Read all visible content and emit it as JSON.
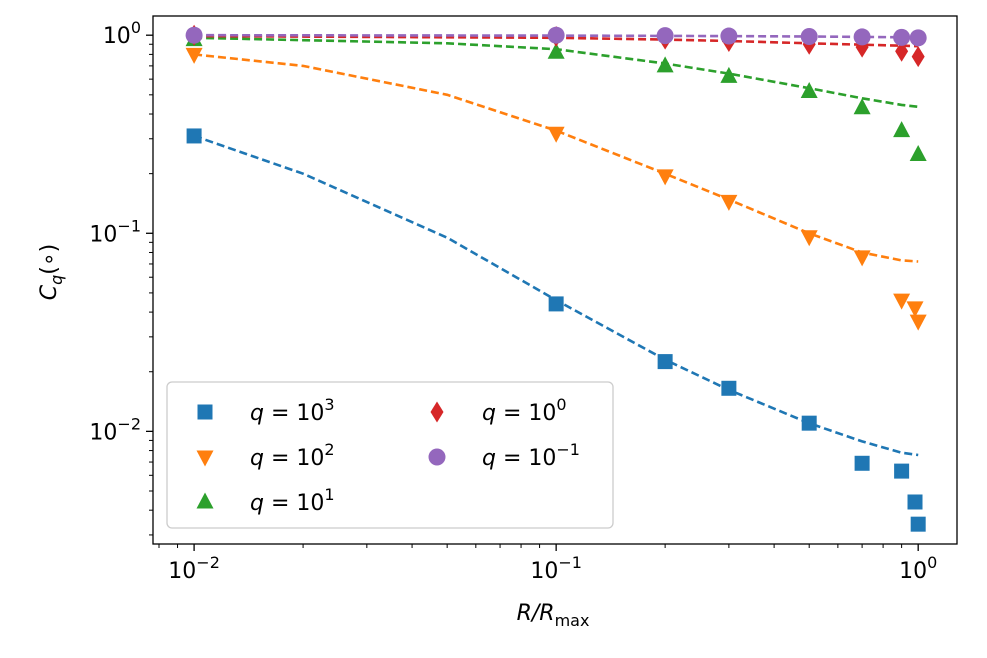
{
  "chart_data": {
    "type": "scatter",
    "xscale": "log",
    "yscale": "log",
    "xlim": [
      0.0077,
      1.28
    ],
    "ylim": [
      0.0027,
      1.25
    ],
    "xlabel": {
      "base": "R/R",
      "sub": "max"
    },
    "ylabel": {
      "base": "C",
      "sub": "q",
      "suffix": "(∘)"
    },
    "xticks": [
      {
        "value": 0.01,
        "base": "10",
        "exp": "−2"
      },
      {
        "value": 0.1,
        "base": "10",
        "exp": "−1"
      },
      {
        "value": 1,
        "base": "10",
        "exp": "0"
      }
    ],
    "yticks": [
      {
        "value": 0.01,
        "base": "10",
        "exp": "−2"
      },
      {
        "value": 0.1,
        "base": "10",
        "exp": "−1"
      },
      {
        "value": 1,
        "base": "10",
        "exp": "0"
      }
    ],
    "legend_position": "lower-left",
    "series": [
      {
        "name": "q=10^3",
        "label_base": "q = 10",
        "label_exp": "3",
        "color": "#1f77b4",
        "marker": "square",
        "x": [
          0.01,
          0.1,
          0.2,
          0.3,
          0.5,
          0.7,
          0.9,
          0.98,
          1.0
        ],
        "y": [
          0.31,
          0.044,
          0.0225,
          0.0165,
          0.011,
          0.0069,
          0.0063,
          0.0044,
          0.0034
        ],
        "fit_x": [
          0.01,
          0.02,
          0.05,
          0.1,
          0.2,
          0.3,
          0.5,
          0.7,
          0.9,
          1.0
        ],
        "fit_y": [
          0.31,
          0.2,
          0.095,
          0.046,
          0.023,
          0.0162,
          0.011,
          0.0089,
          0.0078,
          0.0076
        ]
      },
      {
        "name": "q=10^2",
        "label_base": "q = 10",
        "label_exp": "2",
        "color": "#ff7f0e",
        "marker": "triangle-down",
        "x": [
          0.01,
          0.1,
          0.2,
          0.3,
          0.5,
          0.7,
          0.9,
          0.98,
          1.0
        ],
        "y": [
          0.8,
          0.32,
          0.195,
          0.145,
          0.096,
          0.076,
          0.046,
          0.042,
          0.036
        ],
        "fit_x": [
          0.01,
          0.02,
          0.05,
          0.1,
          0.2,
          0.3,
          0.5,
          0.7,
          0.9,
          1.0
        ],
        "fit_y": [
          0.8,
          0.7,
          0.5,
          0.33,
          0.2,
          0.148,
          0.1,
          0.08,
          0.073,
          0.072
        ]
      },
      {
        "name": "q=10^1",
        "label_base": "q = 10",
        "label_exp": "1",
        "color": "#2ca02c",
        "marker": "triangle-up",
        "x": [
          0.01,
          0.1,
          0.2,
          0.3,
          0.5,
          0.7,
          0.9,
          1.0
        ],
        "y": [
          0.95,
          0.82,
          0.7,
          0.62,
          0.52,
          0.43,
          0.33,
          0.25
        ],
        "fit_x": [
          0.01,
          0.05,
          0.1,
          0.2,
          0.3,
          0.5,
          0.7,
          0.9,
          1.0
        ],
        "fit_y": [
          0.97,
          0.91,
          0.85,
          0.72,
          0.64,
          0.54,
          0.48,
          0.445,
          0.435
        ]
      },
      {
        "name": "q=10^0",
        "label_base": "q = 10",
        "label_exp": "0",
        "color": "#d62728",
        "marker": "diamond",
        "x": [
          0.01,
          0.1,
          0.2,
          0.3,
          0.5,
          0.7,
          0.9,
          1.0
        ],
        "y": [
          1.0,
          0.985,
          0.955,
          0.93,
          0.9,
          0.87,
          0.83,
          0.78
        ],
        "fit_x": [
          0.01,
          0.1,
          0.2,
          0.3,
          0.5,
          0.7,
          0.9,
          1.0
        ],
        "fit_y": [
          0.99,
          0.97,
          0.95,
          0.935,
          0.91,
          0.895,
          0.885,
          0.88
        ]
      },
      {
        "name": "q=10^-1",
        "label_base": "q = 10",
        "label_exp": "−1",
        "color": "#9467bd",
        "marker": "circle",
        "x": [
          0.01,
          0.1,
          0.2,
          0.3,
          0.5,
          0.7,
          0.9,
          1.0
        ],
        "y": [
          1.0,
          1.0,
          0.995,
          0.99,
          0.985,
          0.98,
          0.975,
          0.97
        ],
        "fit_x": [
          0.01,
          0.1,
          0.3,
          0.5,
          0.7,
          1.0
        ],
        "fit_y": [
          1.0,
          0.995,
          0.99,
          0.985,
          0.98,
          0.975
        ]
      }
    ]
  }
}
